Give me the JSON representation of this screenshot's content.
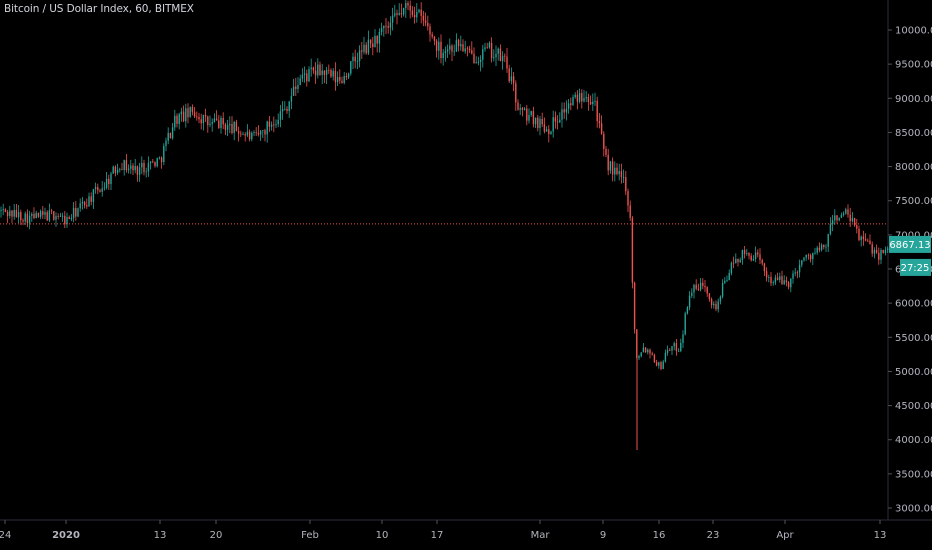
{
  "chart_title": "Bitcoin / US Dollar Index, 60, BITMEX",
  "colors": {
    "background": "#000000",
    "up": "#26a69a",
    "down": "#ef5350",
    "price_line": "#ef5350",
    "axis_text": "#b2b5be",
    "badge": "#26a69a"
  },
  "price_badge": {
    "value": "6867.13",
    "countdown": "27:25"
  },
  "chart_data": {
    "type": "candlestick",
    "title": "Bitcoin / US Dollar Index, 60, BITMEX",
    "ylim": [
      2800,
      10450
    ],
    "y_ticks": [
      "10000.00",
      "9500.00",
      "9000.00",
      "8500.00",
      "8000.00",
      "7500.00",
      "7000.00",
      "6500.00",
      "6000.00",
      "5500.00",
      "5000.00",
      "4500.00",
      "4000.00",
      "3500.00",
      "3000.00"
    ],
    "x_ticks": [
      "24",
      "2020",
      "13",
      "20",
      "Feb",
      "10",
      "17",
      "Mar",
      "9",
      "16",
      "23",
      "Apr",
      "13"
    ],
    "price_line": 7160,
    "last_price": 6867.13,
    "countdown": "27:25",
    "series": [
      {
        "x": [
          "Dec 24",
          "Dec 27",
          "Dec 30",
          "Jan 1",
          "Jan 3",
          "Jan 6",
          "Jan 8",
          "Jan 10",
          "Jan 13",
          "Jan 15",
          "Jan 17",
          "Jan 19",
          "Jan 20",
          "Jan 22",
          "Jan 24",
          "Jan 27",
          "Jan 29",
          "Feb 1",
          "Feb 4",
          "Feb 6",
          "Feb 8",
          "Feb 10",
          "Feb 12",
          "Feb 13",
          "Feb 15",
          "Feb 17",
          "Feb 19",
          "Feb 20",
          "Feb 22",
          "Feb 24",
          "Feb 26",
          "Feb 28",
          "Mar 1",
          "Mar 3",
          "Mar 5",
          "Mar 7",
          "Mar 8",
          "Mar 9",
          "Mar 10",
          "Mar 11",
          "Mar 12",
          "Mar 13",
          "Mar 14",
          "Mar 15",
          "Mar 16",
          "Mar 17",
          "Mar 18",
          "Mar 19",
          "Mar 20",
          "Mar 21",
          "Mar 22",
          "Mar 23",
          "Mar 24",
          "Mar 26",
          "Mar 28",
          "Mar 30",
          "Apr 1",
          "Apr 3",
          "Apr 5",
          "Apr 7",
          "Apr 9",
          "Apr 11",
          "Apr 12",
          "Apr 13",
          "Apr 14"
        ],
        "values": [
          7350,
          7250,
          7300,
          7200,
          7400,
          7750,
          8050,
          7950,
          8100,
          8700,
          8800,
          8600,
          8650,
          8550,
          8400,
          8850,
          9300,
          9400,
          9250,
          9650,
          9850,
          10050,
          10250,
          10350,
          10100,
          9700,
          9800,
          9600,
          9700,
          9550,
          8800,
          8700,
          8550,
          8850,
          9100,
          8950,
          8100,
          7900,
          7800,
          7300,
          5700,
          5200,
          5350,
          5300,
          5050,
          5350,
          5350,
          6200,
          6200,
          6300,
          5900,
          6450,
          6700,
          6700,
          6350,
          6300,
          6600,
          6750,
          6800,
          7250,
          7300,
          7000,
          6900,
          6700,
          6870
        ]
      }
    ]
  }
}
